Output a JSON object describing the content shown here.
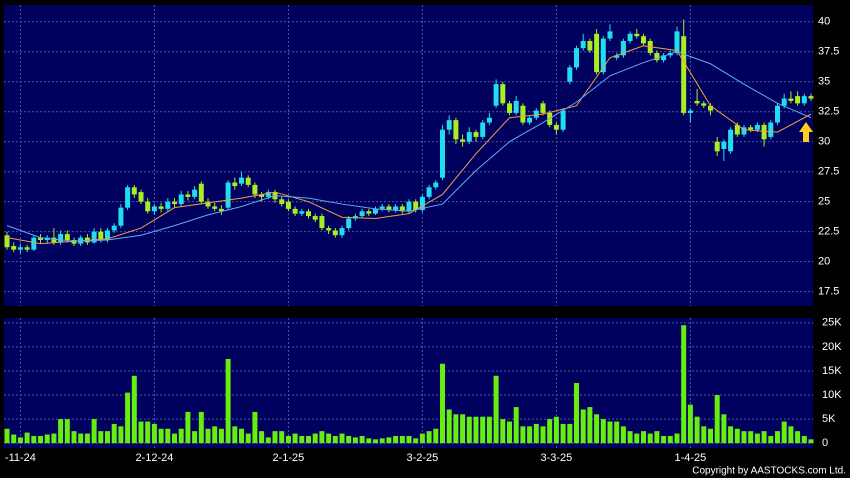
{
  "chart_data": {
    "type": "candlestick",
    "up_color": "#22ddee",
    "down_color": "#a8ee22",
    "xlim": [
      -0.45,
      120.3
    ],
    "xticks": [
      {
        "value": 2,
        "label": "-11-24"
      },
      {
        "value": 22,
        "label": "2-12-24"
      },
      {
        "value": 42,
        "label": "2-1-25"
      },
      {
        "value": 62,
        "label": "3-2-25"
      },
      {
        "value": 82,
        "label": "3-3-25"
      },
      {
        "value": 102,
        "label": "1-4-25"
      }
    ],
    "ylim": [
      16.3,
      41.4
    ],
    "yticks": [
      17.5,
      20,
      22.5,
      25,
      27.5,
      30,
      32.5,
      35,
      37.5,
      40
    ],
    "grid": true,
    "ohlc": [
      [
        22.2,
        22.5,
        21.0,
        21.2
      ],
      [
        21.3,
        21.6,
        20.8,
        21.0
      ],
      [
        21.0,
        21.5,
        20.7,
        21.2
      ],
      [
        21.2,
        21.4,
        20.8,
        21.0
      ],
      [
        21.0,
        22.2,
        20.9,
        22.0
      ],
      [
        22.0,
        22.3,
        21.5,
        21.8
      ],
      [
        21.8,
        22.2,
        21.5,
        22.0
      ],
      [
        22.0,
        22.8,
        21.4,
        21.6
      ],
      [
        21.6,
        22.6,
        21.4,
        22.3
      ],
      [
        22.3,
        22.6,
        21.6,
        21.8
      ],
      [
        21.8,
        22.0,
        21.3,
        21.5
      ],
      [
        21.5,
        22.2,
        21.3,
        22.0
      ],
      [
        22.0,
        22.3,
        21.4,
        21.6
      ],
      [
        21.6,
        22.8,
        21.5,
        22.5
      ],
      [
        22.5,
        22.8,
        21.6,
        21.8
      ],
      [
        21.8,
        22.8,
        21.6,
        22.6
      ],
      [
        22.6,
        23.2,
        22.4,
        23.0
      ],
      [
        23.0,
        24.8,
        22.8,
        24.5
      ],
      [
        24.5,
        26.4,
        24.3,
        26.2
      ],
      [
        26.2,
        26.4,
        25.3,
        25.6
      ],
      [
        25.8,
        26.0,
        24.8,
        25.0
      ],
      [
        25.0,
        25.3,
        24.0,
        24.2
      ],
      [
        24.2,
        24.8,
        23.9,
        24.6
      ],
      [
        24.6,
        24.9,
        24.1,
        24.4
      ],
      [
        24.4,
        25.3,
        24.2,
        25.0
      ],
      [
        25.0,
        25.3,
        24.5,
        24.8
      ],
      [
        24.8,
        25.9,
        24.6,
        25.6
      ],
      [
        25.6,
        25.9,
        25.1,
        25.4
      ],
      [
        25.4,
        26.3,
        25.2,
        26.0
      ],
      [
        26.5,
        26.7,
        24.8,
        25.0
      ],
      [
        25.0,
        25.3,
        24.4,
        24.6
      ],
      [
        24.6,
        24.9,
        24.2,
        24.4
      ],
      [
        24.4,
        24.7,
        23.9,
        24.2
      ],
      [
        24.5,
        26.8,
        24.3,
        26.6
      ],
      [
        26.6,
        27.0,
        26.0,
        26.3
      ],
      [
        26.5,
        27.5,
        26.3,
        27.0
      ],
      [
        27.0,
        27.2,
        26.2,
        26.4
      ],
      [
        26.4,
        26.6,
        25.3,
        25.6
      ],
      [
        25.6,
        25.8,
        25.0,
        25.4
      ],
      [
        25.4,
        26.0,
        25.2,
        25.8
      ],
      [
        25.8,
        26.0,
        24.9,
        25.2
      ],
      [
        25.2,
        25.4,
        24.6,
        24.8
      ],
      [
        25.0,
        25.2,
        24.2,
        24.4
      ],
      [
        24.4,
        24.6,
        23.8,
        24.0
      ],
      [
        24.0,
        24.4,
        23.8,
        24.2
      ],
      [
        24.2,
        24.4,
        23.6,
        23.8
      ],
      [
        23.8,
        24.0,
        23.3,
        23.5
      ],
      [
        23.8,
        24.0,
        22.6,
        22.8
      ],
      [
        22.8,
        23.0,
        22.3,
        22.6
      ],
      [
        22.6,
        22.8,
        22.0,
        22.2
      ],
      [
        22.2,
        23.0,
        22.0,
        22.8
      ],
      [
        22.8,
        23.8,
        22.6,
        23.6
      ],
      [
        23.6,
        24.0,
        23.4,
        23.8
      ],
      [
        23.8,
        24.4,
        23.6,
        24.2
      ],
      [
        24.2,
        24.4,
        23.8,
        24.0
      ],
      [
        24.0,
        24.6,
        23.9,
        24.4
      ],
      [
        24.4,
        24.8,
        24.2,
        24.6
      ],
      [
        24.6,
        24.8,
        24.1,
        24.3
      ],
      [
        24.3,
        24.8,
        24.1,
        24.6
      ],
      [
        24.6,
        24.8,
        24.0,
        24.2
      ],
      [
        24.2,
        25.2,
        24.0,
        25.0
      ],
      [
        25.0,
        25.2,
        24.1,
        24.3
      ],
      [
        24.3,
        25.6,
        24.1,
        25.4
      ],
      [
        25.4,
        26.4,
        25.2,
        26.2
      ],
      [
        26.2,
        26.8,
        26.0,
        26.6
      ],
      [
        27.0,
        31.4,
        26.8,
        31.0
      ],
      [
        31.0,
        32.2,
        30.6,
        31.8
      ],
      [
        31.8,
        32.0,
        29.8,
        30.2
      ],
      [
        30.2,
        30.6,
        29.6,
        30.0
      ],
      [
        30.0,
        31.2,
        29.8,
        30.8
      ],
      [
        30.8,
        31.0,
        30.0,
        30.4
      ],
      [
        30.4,
        31.8,
        30.2,
        31.6
      ],
      [
        31.6,
        32.4,
        31.4,
        32.0
      ],
      [
        33.0,
        35.2,
        32.8,
        34.8
      ],
      [
        34.8,
        35.0,
        33.0,
        33.2
      ],
      [
        33.2,
        33.4,
        32.2,
        32.4
      ],
      [
        32.4,
        33.8,
        32.2,
        33.4
      ],
      [
        33.0,
        33.2,
        31.4,
        31.6
      ],
      [
        31.6,
        32.2,
        31.4,
        32.0
      ],
      [
        32.0,
        32.8,
        31.8,
        32.6
      ],
      [
        33.2,
        33.4,
        32.2,
        32.4
      ],
      [
        32.4,
        32.6,
        31.2,
        31.4
      ],
      [
        31.4,
        31.6,
        30.6,
        31.0
      ],
      [
        31.0,
        32.8,
        30.8,
        32.6
      ],
      [
        35.0,
        36.4,
        34.8,
        36.2
      ],
      [
        36.2,
        38.0,
        36.0,
        37.8
      ],
      [
        37.8,
        39.0,
        37.6,
        38.4
      ],
      [
        38.4,
        38.6,
        37.4,
        37.6
      ],
      [
        39.0,
        39.4,
        35.6,
        35.8
      ],
      [
        35.8,
        38.8,
        35.6,
        38.6
      ],
      [
        38.6,
        39.8,
        38.4,
        39.2
      ],
      [
        37.0,
        37.4,
        36.8,
        37.2
      ],
      [
        37.2,
        38.6,
        37.0,
        38.4
      ],
      [
        38.4,
        39.2,
        38.2,
        39.0
      ],
      [
        39.0,
        39.4,
        38.6,
        38.8
      ],
      [
        38.8,
        39.0,
        38.0,
        38.2
      ],
      [
        38.4,
        38.6,
        37.2,
        37.4
      ],
      [
        37.4,
        37.6,
        36.6,
        36.8
      ],
      [
        36.8,
        37.4,
        36.6,
        37.2
      ],
      [
        37.2,
        37.6,
        37.0,
        37.4
      ],
      [
        37.4,
        39.6,
        37.2,
        39.2
      ],
      [
        38.8,
        40.2,
        32.2,
        32.4
      ],
      [
        32.4,
        32.8,
        31.6,
        32.6
      ],
      [
        33.4,
        34.4,
        33.0,
        33.2
      ],
      [
        33.2,
        33.4,
        32.8,
        33.0
      ],
      [
        33.0,
        33.2,
        32.2,
        32.6
      ],
      [
        30.0,
        30.4,
        28.8,
        29.2
      ],
      [
        29.4,
        30.2,
        28.4,
        30.0
      ],
      [
        29.2,
        31.2,
        29.0,
        31.0
      ],
      [
        31.4,
        31.6,
        30.4,
        30.6
      ],
      [
        30.6,
        31.4,
        30.4,
        31.2
      ],
      [
        31.2,
        31.4,
        30.8,
        31.0
      ],
      [
        31.0,
        31.6,
        30.8,
        31.4
      ],
      [
        31.4,
        31.6,
        29.6,
        30.2
      ],
      [
        30.4,
        31.8,
        30.2,
        31.6
      ],
      [
        31.6,
        33.2,
        31.4,
        33.0
      ],
      [
        33.0,
        34.0,
        32.8,
        33.6
      ],
      [
        33.6,
        34.2,
        33.2,
        33.4
      ],
      [
        33.8,
        34.2,
        33.0,
        33.2
      ],
      [
        33.2,
        34.0,
        33.0,
        33.8
      ],
      [
        33.8,
        34.0,
        33.4,
        33.6
      ]
    ],
    "ma": [
      {
        "color": "#f0a040",
        "x": [
          0,
          5,
          10,
          15,
          20,
          25,
          30,
          35,
          40,
          45,
          50,
          55,
          60,
          65,
          70,
          75,
          80,
          85,
          90,
          95,
          100,
          105,
          110,
          115,
          120
        ],
        "values": [
          22.0,
          21.5,
          21.7,
          21.9,
          22.8,
          24.5,
          24.9,
          25.3,
          25.8,
          25.0,
          23.7,
          23.6,
          24.0,
          25.6,
          29.0,
          32.0,
          32.3,
          33.0,
          37.0,
          38.0,
          37.6,
          33.0,
          31.0,
          30.8,
          32.3
        ]
      },
      {
        "color": "#66aaee",
        "x": [
          0,
          5,
          10,
          15,
          20,
          25,
          30,
          35,
          40,
          45,
          50,
          55,
          60,
          65,
          70,
          75,
          80,
          85,
          90,
          95,
          100,
          105,
          110,
          115,
          120
        ],
        "values": [
          23.0,
          22.0,
          21.7,
          21.8,
          22.2,
          23.0,
          23.9,
          24.6,
          25.5,
          25.3,
          24.8,
          24.4,
          24.2,
          24.8,
          27.6,
          30.0,
          31.6,
          33.3,
          35.5,
          36.6,
          37.5,
          36.5,
          34.8,
          33.2,
          32.0
        ]
      }
    ],
    "volume": {
      "color": "#66ee11",
      "ylim": [
        -1000,
        26000
      ],
      "yticks": [
        {
          "value": 0,
          "label": "0"
        },
        {
          "value": 5000,
          "label": "5K"
        },
        {
          "value": 10000,
          "label": "10K"
        },
        {
          "value": 15000,
          "label": "15K"
        },
        {
          "value": 20000,
          "label": "20K"
        },
        {
          "value": 25000,
          "label": "25K"
        }
      ],
      "values": [
        3000,
        1800,
        1200,
        2200,
        1500,
        1500,
        1800,
        2000,
        5000,
        5000,
        2500,
        2000,
        2000,
        5000,
        2500,
        2500,
        4000,
        3500,
        10500,
        14000,
        4500,
        4500,
        4000,
        3000,
        3000,
        2000,
        3000,
        6500,
        2500,
        6500,
        3000,
        3500,
        3000,
        17500,
        3500,
        3000,
        2000,
        6500,
        2500,
        1200,
        2500,
        2500,
        1500,
        2000,
        1500,
        1500,
        2000,
        2500,
        2000,
        1500,
        2000,
        1500,
        1200,
        1500,
        1000,
        800,
        1000,
        1200,
        1500,
        1500,
        1500,
        1000,
        2000,
        2500,
        3000,
        16500,
        7000,
        6000,
        6000,
        5500,
        5500,
        5500,
        5500,
        14000,
        5000,
        4500,
        7500,
        3500,
        3500,
        4000,
        3500,
        5000,
        5500,
        4000,
        4000,
        12500,
        7000,
        7500,
        6000,
        5000,
        4500,
        4500,
        3500,
        2500,
        2000,
        2500,
        2000,
        2500,
        1500,
        1500,
        2000,
        24500,
        8000,
        5500,
        3500,
        3000,
        10000,
        6000,
        3500,
        3000,
        2500,
        2500,
        2000,
        2500,
        1500,
        2500,
        4500,
        3500,
        2500,
        1500,
        800
      ]
    },
    "copyright": "Copyright by AASTOCKS.com Ltd."
  }
}
